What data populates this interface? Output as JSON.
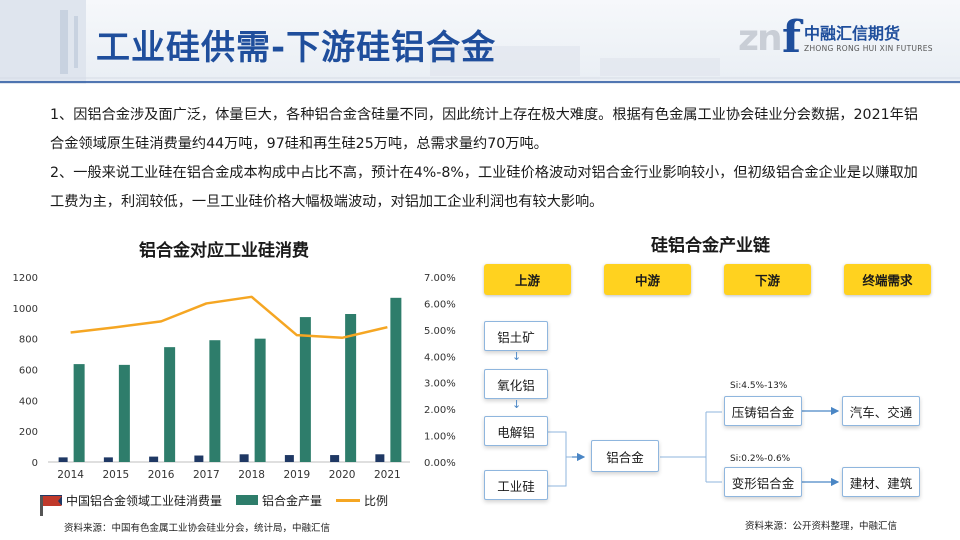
{
  "header": {
    "title": "工业硅供需-下游硅铝合金",
    "logo": {
      "cn": "中融汇信期货",
      "en": "ZHONG RONG HUI XIN FUTURES",
      "mark": "zn f"
    }
  },
  "body": {
    "paragraphs": [
      "1、因铝合金涉及面广泛，体量巨大，各种铝合金含硅量不同，因此统计上存在极大难度。根据有色金属工业协会硅业分会数据，2021年铝合金领域原生硅消费量约44万吨，97硅和再生硅25万吨，总需求量约70万吨。",
      "2、一般来说工业硅在铝合金成本构成中占比不高，预计在4%-8%，工业硅价格波动对铝合金行业影响较小，但初级铝合金企业是以赚取加工费为主，利润较低，一旦工业硅价格大幅极端波动，对铝加工企业利润也有较大影响。"
    ]
  },
  "chart_data": {
    "type": "bar",
    "title": "铝合金对应工业硅消费",
    "categories": [
      "2014",
      "2015",
      "2016",
      "2017",
      "2018",
      "2019",
      "2020",
      "2021"
    ],
    "series": [
      {
        "name": "中国铝合金领域工业硅消费量",
        "type": "bar",
        "axis": "left",
        "color": "#1f3864",
        "values": [
          30,
          30,
          35,
          42,
          50,
          45,
          45,
          50
        ]
      },
      {
        "name": "铝合金产量",
        "type": "bar",
        "axis": "left",
        "color": "#2e7d6b",
        "values": [
          635,
          630,
          745,
          790,
          800,
          940,
          960,
          1065
        ]
      },
      {
        "name": "比例",
        "type": "line",
        "axis": "right",
        "color": "#f5a623",
        "values": [
          0.049,
          0.051,
          0.0532,
          0.06,
          0.0625,
          0.048,
          0.047,
          0.051
        ]
      }
    ],
    "left_axis": {
      "ylim": [
        0,
        1200
      ],
      "ticks": [
        "0",
        "200",
        "400",
        "600",
        "800",
        "1000",
        "1200"
      ]
    },
    "right_axis": {
      "ylim": [
        0,
        0.07
      ],
      "ticks": [
        "0.00%",
        "1.00%",
        "2.00%",
        "3.00%",
        "4.00%",
        "5.00%",
        "6.00%",
        "7.00%"
      ]
    },
    "xlabel": "",
    "ylabel": "",
    "grid": false,
    "legend": "bottom"
  },
  "legend_labels": [
    "中国铝合金领域工业硅消费量",
    "铝合金产量",
    "比例"
  ],
  "chain": {
    "title": "硅铝合金产业链",
    "stages": [
      "上游",
      "中游",
      "下游",
      "终端需求"
    ],
    "upstream": [
      "铝土矿",
      "氧化铝",
      "电解铝",
      "工业硅"
    ],
    "mid": "铝合金",
    "down": [
      "压铸铝合金",
      "变形铝合金"
    ],
    "terminal": [
      "汽车、交通",
      "建材、建筑"
    ],
    "notes": [
      "Si:4.5%-13%",
      "Si:0.2%-0.6%"
    ],
    "arrow_glyph": "↓",
    "colors": {
      "stage_fill": "#ffd21f",
      "node_border": "#8fb6de",
      "arrow": "#4a86c5"
    }
  },
  "sources": {
    "left": "资料来源：中国有色金属工业协会硅业分会，统计局，中融汇信",
    "right": "资料来源：公开资料整理，中融汇信"
  },
  "colors": {
    "title": "#1f4e9c",
    "bar_dark": "#1f3864",
    "bar_green": "#2e7d6b",
    "line_orange": "#f5a623"
  }
}
